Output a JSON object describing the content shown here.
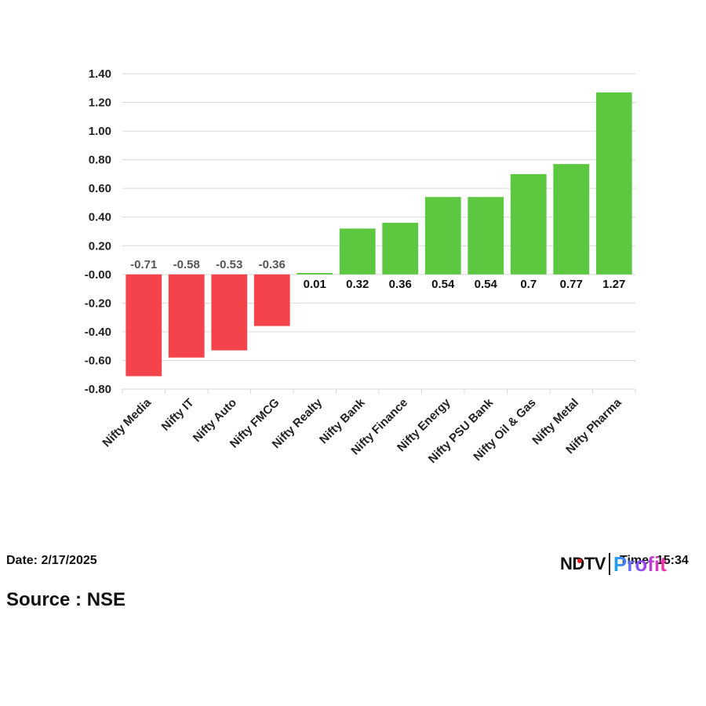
{
  "chart_data": {
    "type": "bar",
    "categories": [
      "Nifty Media",
      "Nifty IT",
      "Nifty Auto",
      "Nifty FMCG",
      "Nifty Realty",
      "Nifty Bank",
      "Nifty Finance",
      "Nifty Energy",
      "Nifty PSU Bank",
      "Nifty Oil & Gas",
      "Nifty Metal",
      "Nifty Pharma"
    ],
    "values": [
      -0.71,
      -0.58,
      -0.53,
      -0.36,
      0.01,
      0.32,
      0.36,
      0.54,
      0.54,
      0.7,
      0.77,
      1.27
    ],
    "value_labels": [
      "-0.71",
      "-0.58",
      "-0.53",
      "-0.36",
      "0.01",
      "0.32",
      "0.36",
      "0.54",
      "0.54",
      "0.7",
      "0.77",
      "1.27"
    ],
    "yticks": [
      "1.40",
      "1.20",
      "1.00",
      "0.80",
      "0.60",
      "0.40",
      "0.20",
      "-0.00",
      "-0.20",
      "-0.40",
      "-0.60",
      "-0.80"
    ],
    "ytick_values": [
      1.4,
      1.2,
      1.0,
      0.8,
      0.6,
      0.4,
      0.2,
      0.0,
      -0.2,
      -0.4,
      -0.6,
      -0.8
    ],
    "ylim": [
      -0.8,
      1.4
    ],
    "grid": true,
    "title": "",
    "xlabel": "",
    "ylabel": "",
    "colors": {
      "positive": "#5cc840",
      "negative": "#f5434b",
      "positive_label": "#111111",
      "negative_label": "#555555",
      "grid": "#d9d9d9"
    }
  },
  "footer": {
    "date": "Date: 2/17/2025",
    "time": "Time: 15:34",
    "source": "Source : NSE"
  },
  "logo": {
    "brand": "NDTV",
    "product": "Profit"
  }
}
